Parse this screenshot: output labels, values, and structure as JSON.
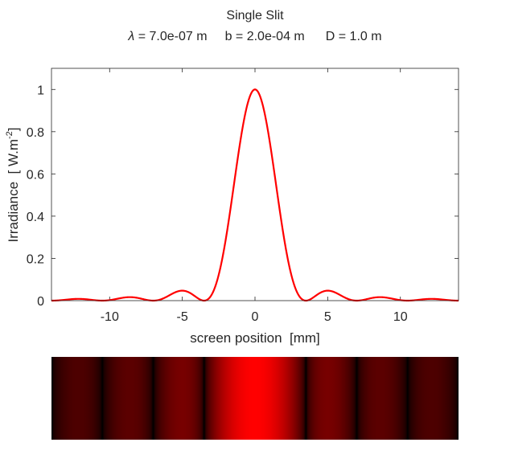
{
  "chart_data": [
    {
      "type": "line",
      "title": "Single Slit",
      "subtitle": {
        "lambda_symbol": "λ",
        "lambda_text": " = 7.0e-07 m",
        "b_text": "b = 2.0e-04 m",
        "D_text": "D = 1.0 m"
      },
      "xlabel": "screen position  [mm]",
      "ylabel": {
        "main": "Irradiance  [ W.m",
        "sup": "-2",
        "close": "]"
      },
      "xlim": [
        -14,
        14
      ],
      "ylim": [
        0,
        1.1
      ],
      "xticks": [
        -10,
        -5,
        0,
        5,
        10
      ],
      "yticks": [
        0,
        0.2,
        0.4,
        0.6,
        0.8,
        1
      ],
      "xtick_labels": [
        "-10",
        "-5",
        "0",
        "5",
        "10"
      ],
      "ytick_labels": [
        "0",
        "0.2",
        "0.4",
        "0.6",
        "0.8",
        "1"
      ],
      "grid": false,
      "series": [
        {
          "color": "#ff0000",
          "model": "sinc^2",
          "wavelength_m": 7e-07,
          "slit_width_m": 0.0002,
          "distance_m": 1.0,
          "peak": 1.0,
          "first_minimum_mm": 3.5,
          "secondary_maxima_mm": [
            -8.66,
            -5.01,
            5.01,
            8.66
          ],
          "secondary_maxima_values": [
            0.0165,
            0.0472,
            0.0472,
            0.0165
          ]
        }
      ]
    },
    {
      "type": "heatmap",
      "description_color": "#ff0000",
      "xlim": [
        -14,
        14
      ],
      "colormap": [
        "#000000",
        "#ff0000"
      ],
      "intensity_gamma": 0.25
    }
  ]
}
